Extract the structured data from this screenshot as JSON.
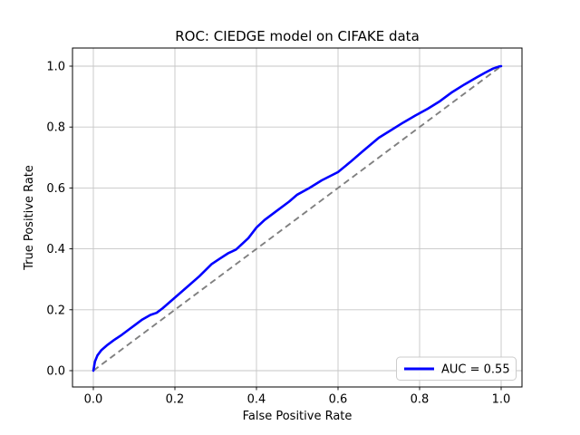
{
  "chart_data": {
    "type": "line",
    "title": "ROC: CIEDGE model on CIFAKE data",
    "xlabel": "False Positive Rate",
    "ylabel": "True Positive Rate",
    "xlim": [
      -0.05,
      1.05
    ],
    "ylim": [
      -0.05,
      1.05
    ],
    "xticks": [
      0.0,
      0.2,
      0.4,
      0.6,
      0.8,
      1.0
    ],
    "yticks": [
      0.0,
      0.2,
      0.4,
      0.6,
      0.8,
      1.0
    ],
    "xtick_labels": [
      "0.0",
      "0.2",
      "0.4",
      "0.6",
      "0.8",
      "1.0"
    ],
    "ytick_labels": [
      "0.0",
      "0.2",
      "0.4",
      "0.6",
      "0.8",
      "1.0"
    ],
    "grid": true,
    "legend": {
      "position": "lower right",
      "entries": [
        {
          "label": "AUC = 0.55",
          "color": "#0000ff",
          "style": "solid"
        }
      ]
    },
    "series": [
      {
        "name": "roc-curve",
        "color": "#0000ff",
        "style": "solid",
        "x": [
          0.0,
          0.004,
          0.01,
          0.02,
          0.035,
          0.05,
          0.07,
          0.09,
          0.1,
          0.12,
          0.14,
          0.155,
          0.17,
          0.2,
          0.23,
          0.26,
          0.29,
          0.31,
          0.33,
          0.35,
          0.38,
          0.4,
          0.42,
          0.45,
          0.48,
          0.5,
          0.53,
          0.56,
          0.6,
          0.63,
          0.66,
          0.7,
          0.73,
          0.76,
          0.79,
          0.82,
          0.85,
          0.88,
          0.91,
          0.94,
          0.96,
          0.98,
          0.995,
          1.0
        ],
        "y": [
          0.0,
          0.03,
          0.05,
          0.068,
          0.085,
          0.1,
          0.118,
          0.138,
          0.148,
          0.168,
          0.183,
          0.19,
          0.205,
          0.24,
          0.275,
          0.31,
          0.35,
          0.368,
          0.385,
          0.398,
          0.435,
          0.47,
          0.495,
          0.525,
          0.555,
          0.578,
          0.6,
          0.625,
          0.652,
          0.685,
          0.72,
          0.765,
          0.79,
          0.815,
          0.838,
          0.86,
          0.885,
          0.915,
          0.94,
          0.963,
          0.978,
          0.992,
          0.999,
          1.0
        ]
      },
      {
        "name": "chance-diagonal",
        "color": "#808080",
        "style": "dashed",
        "x": [
          0.0,
          1.0
        ],
        "y": [
          0.0,
          1.0
        ]
      }
    ]
  },
  "colors": {
    "curve": "#0000ff",
    "diagonal": "#808080",
    "grid": "#c6c6c6",
    "spine": "#000000",
    "text": "#000000",
    "legend_border": "#cccccc",
    "legend_bg": "#ffffff",
    "background": "#ffffff"
  }
}
